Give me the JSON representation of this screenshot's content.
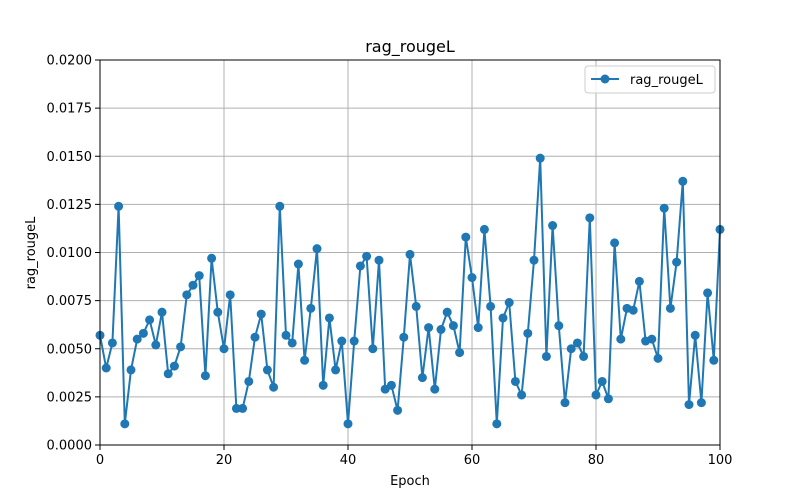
{
  "chart_data": {
    "type": "line",
    "title": "rag_rougeL",
    "xlabel": "Epoch",
    "ylabel": "rag_rougeL",
    "xlim": [
      0,
      100
    ],
    "ylim": [
      0,
      0.02
    ],
    "xticks": [
      0,
      20,
      40,
      60,
      80,
      100
    ],
    "xtick_labels": [
      "0",
      "20",
      "40",
      "60",
      "80",
      "100"
    ],
    "yticks": [
      0,
      0.0025,
      0.005,
      0.0075,
      0.01,
      0.0125,
      0.015,
      0.0175,
      0.02
    ],
    "ytick_labels": [
      "0.0000",
      "0.0025",
      "0.0050",
      "0.0075",
      "0.0100",
      "0.0125",
      "0.0150",
      "0.0175",
      "0.0200"
    ],
    "grid": true,
    "legend_position": "top-right",
    "series": [
      {
        "name": "rag_rougeL",
        "color": "#1f77b4",
        "marker": "circle",
        "x": [
          0,
          1,
          2,
          3,
          4,
          5,
          6,
          7,
          8,
          9,
          10,
          11,
          12,
          13,
          14,
          15,
          16,
          17,
          18,
          19,
          20,
          21,
          22,
          23,
          24,
          25,
          26,
          27,
          28,
          29,
          30,
          31,
          32,
          33,
          34,
          35,
          36,
          37,
          38,
          39,
          40,
          41,
          42,
          43,
          44,
          45,
          46,
          47,
          48,
          49,
          50,
          51,
          52,
          53,
          54,
          55,
          56,
          57,
          58,
          59,
          60,
          61,
          62,
          63,
          64,
          65,
          66,
          67,
          68,
          69,
          70,
          71,
          72,
          73,
          74,
          75,
          76,
          77,
          78,
          79,
          80,
          81,
          82,
          83,
          84,
          85,
          86,
          87,
          88,
          89,
          90,
          91,
          92,
          93,
          94,
          95,
          96,
          97,
          98,
          99,
          100
        ],
        "values": [
          0.0057,
          0.004,
          0.0053,
          0.0124,
          0.0011,
          0.0039,
          0.0055,
          0.0058,
          0.0065,
          0.0052,
          0.0069,
          0.0037,
          0.0041,
          0.0051,
          0.0078,
          0.0083,
          0.0088,
          0.0036,
          0.0097,
          0.0069,
          0.005,
          0.0078,
          0.0019,
          0.0019,
          0.0033,
          0.0056,
          0.0068,
          0.0039,
          0.003,
          0.0124,
          0.0057,
          0.0053,
          0.0094,
          0.0044,
          0.0071,
          0.0102,
          0.0031,
          0.0066,
          0.0039,
          0.0054,
          0.0011,
          0.0054,
          0.0093,
          0.0098,
          0.005,
          0.0096,
          0.0029,
          0.0031,
          0.0018,
          0.0056,
          0.0099,
          0.0072,
          0.0035,
          0.0061,
          0.0029,
          0.006,
          0.0069,
          0.0062,
          0.0048,
          0.0108,
          0.0087,
          0.0061,
          0.0112,
          0.0072,
          0.0011,
          0.0066,
          0.0074,
          0.0033,
          0.0026,
          0.0058,
          0.0096,
          0.0149,
          0.0046,
          0.0114,
          0.0062,
          0.0022,
          0.005,
          0.0053,
          0.0046,
          0.0118,
          0.0026,
          0.0033,
          0.0024,
          0.0105,
          0.0055,
          0.0071,
          0.007,
          0.0085,
          0.0054,
          0.0055,
          0.0045,
          0.0123,
          0.0071,
          0.0095,
          0.0137,
          0.0021,
          0.0057,
          0.0022,
          0.0079,
          0.0044,
          0.0112
        ]
      }
    ]
  }
}
